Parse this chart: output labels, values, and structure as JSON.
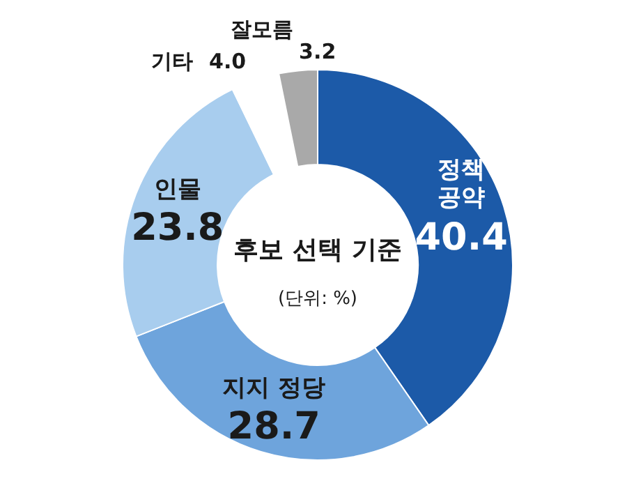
{
  "chart_data": {
    "type": "donut",
    "title": "후보 선택 기준",
    "subtitle": "(단위: %)",
    "categories": [
      "정책 공약",
      "지지 정당",
      "인물",
      "기타",
      "잘모름"
    ],
    "values": [
      40.4,
      28.7,
      23.8,
      4.0,
      3.2
    ],
    "value_labels": [
      "40.4",
      "28.7",
      "23.8",
      "4.0",
      "3.2"
    ],
    "colors": [
      "#1c5aa8",
      "#6ea4dc",
      "#a8cdee",
      "#ffffff",
      "#a9a9a9"
    ]
  }
}
